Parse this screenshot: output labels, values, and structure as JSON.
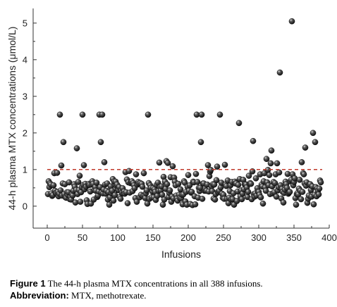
{
  "chart_data": {
    "type": "scatter",
    "xlabel": "Infusions",
    "ylabel": "44-h plasma MTX concentrations (μmol/L)",
    "xlim": [
      -20,
      400
    ],
    "ylim": [
      -0.6,
      5.4
    ],
    "x_ticks": [
      0,
      50,
      100,
      150,
      200,
      250,
      300,
      350,
      400
    ],
    "y_ticks": [
      0,
      1,
      2,
      3,
      4,
      5
    ],
    "reference_line": {
      "y": 1,
      "color": "#c0392b",
      "style": "dashed"
    },
    "marker_color": "#1a1a1a",
    "grid": false,
    "high_points": [
      {
        "x": 18,
        "y": 2.5
      },
      {
        "x": 23,
        "y": 1.75
      },
      {
        "x": 50,
        "y": 2.5
      },
      {
        "x": 42,
        "y": 1.58
      },
      {
        "x": 74,
        "y": 2.5
      },
      {
        "x": 78,
        "y": 2.5
      },
      {
        "x": 76,
        "y": 1.75
      },
      {
        "x": 143,
        "y": 2.5
      },
      {
        "x": 212,
        "y": 2.5
      },
      {
        "x": 219,
        "y": 2.5
      },
      {
        "x": 218,
        "y": 1.75
      },
      {
        "x": 245,
        "y": 2.5
      },
      {
        "x": 272,
        "y": 2.27
      },
      {
        "x": 292,
        "y": 1.78
      },
      {
        "x": 318,
        "y": 1.52
      },
      {
        "x": 330,
        "y": 3.65
      },
      {
        "x": 347,
        "y": 5.05
      },
      {
        "x": 366,
        "y": 1.6
      },
      {
        "x": 377,
        "y": 2.0
      },
      {
        "x": 380,
        "y": 1.75
      }
    ],
    "n_points": 388
  },
  "caption": {
    "figure_label": "Figure 1",
    "figure_text": "The 44-h plasma MTX concentrations in all 388 infusions.",
    "abbrev_label": "Abbreviation:",
    "abbrev_text": "MTX, methotrexate."
  }
}
